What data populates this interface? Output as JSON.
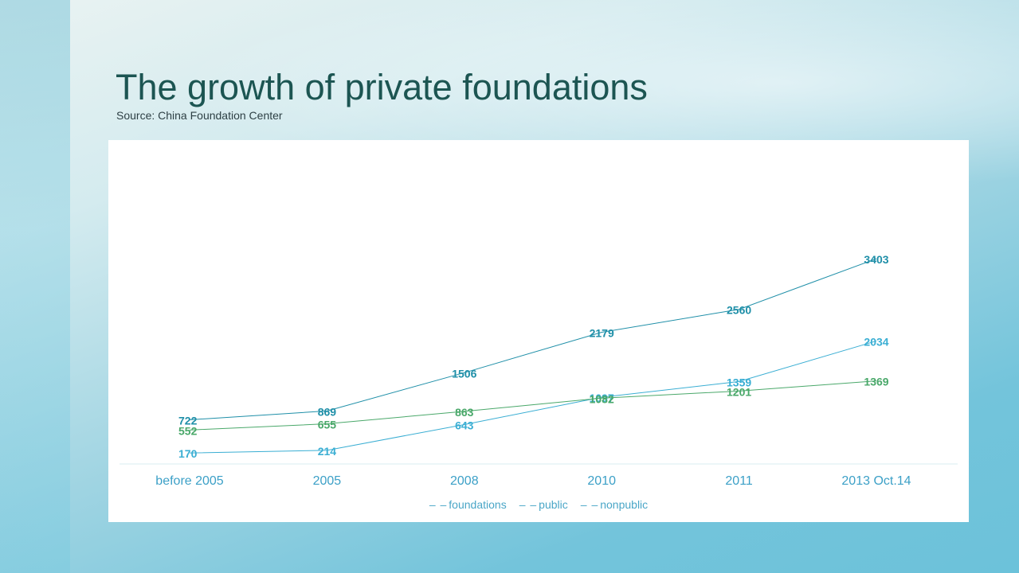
{
  "slide": {
    "title": "The growth of private foundations",
    "source": "Source: China Foundation Center"
  },
  "chart_data": {
    "type": "line",
    "categories": [
      "before 2005",
      "2005",
      "2008",
      "2010",
      "2011",
      "2013 Oct.14"
    ],
    "series": [
      {
        "name": "foundations",
        "values": [
          722,
          869,
          1506,
          2179,
          2560,
          3403
        ],
        "color": "#1f8fa8"
      },
      {
        "name": "public",
        "values": [
          170,
          214,
          643,
          1097,
          1359,
          2034
        ],
        "color": "#3aaed3"
      },
      {
        "name": "nonpublic",
        "values": [
          552,
          655,
          863,
          1082,
          1201,
          1369
        ],
        "color": "#4aa86a"
      }
    ],
    "ylim": [
      0,
      3600
    ],
    "grid": false,
    "legend": "bottom",
    "legend_marker": "– –"
  }
}
